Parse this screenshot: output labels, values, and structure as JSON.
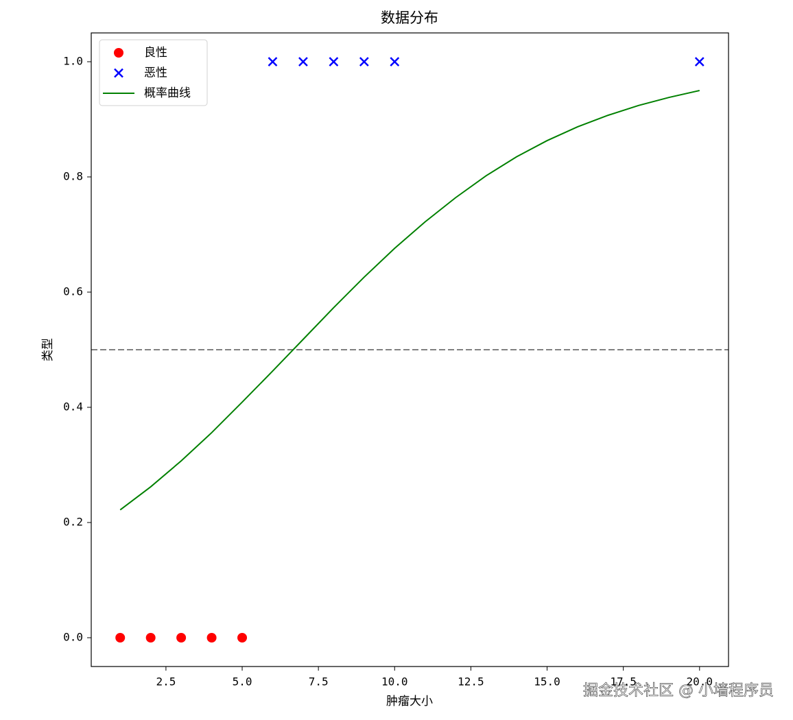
{
  "chart_data": {
    "type": "scatter",
    "title": "数据分布",
    "xlabel": "肿瘤大小",
    "ylabel": "类型",
    "xlim": [
      0.05,
      20.95
    ],
    "ylim": [
      -0.05,
      1.05
    ],
    "xticks": [
      2.5,
      {
        "value": 5.0,
        "label": "5.0"
      },
      7.5,
      {
        "value": 10.0,
        "label": "10.0"
      },
      12.5,
      {
        "value": 15.0,
        "label": "15.0"
      },
      17.5,
      {
        "value": 20.0,
        "label": "20.0"
      }
    ],
    "yticks": [
      {
        "value": 0.0,
        "label": "0.0"
      },
      0.2,
      0.4,
      0.6,
      0.8,
      {
        "value": 1.0,
        "label": "1.0"
      }
    ],
    "legend": "upper left",
    "hline": {
      "value": 0.5,
      "color": "#808080"
    },
    "series": [
      {
        "name": "良性",
        "style": "scatter",
        "marker": "o",
        "color": "#ff0000",
        "x": [
          1,
          2,
          3,
          4,
          5
        ],
        "values": [
          0,
          0,
          0,
          0,
          0
        ]
      },
      {
        "name": "恶性",
        "style": "scatter",
        "marker": "x",
        "color": "#0000ff",
        "x": [
          6,
          7,
          8,
          9,
          10,
          20
        ],
        "values": [
          1,
          1,
          1,
          1,
          1,
          1
        ]
      },
      {
        "name": "概率曲线",
        "style": "line",
        "color": "#008000",
        "x": [
          1,
          2,
          3,
          4,
          5,
          6,
          7,
          8,
          9,
          10,
          11,
          12,
          13,
          14,
          15,
          16,
          17,
          18,
          19,
          20
        ],
        "values": [
          0.222,
          0.262,
          0.307,
          0.356,
          0.409,
          0.463,
          0.518,
          0.573,
          0.626,
          0.676,
          0.722,
          0.764,
          0.802,
          0.835,
          0.863,
          0.887,
          0.907,
          0.924,
          0.938,
          0.95
        ]
      }
    ],
    "watermark": "掘金技术社区 @ 小墙程序员"
  }
}
